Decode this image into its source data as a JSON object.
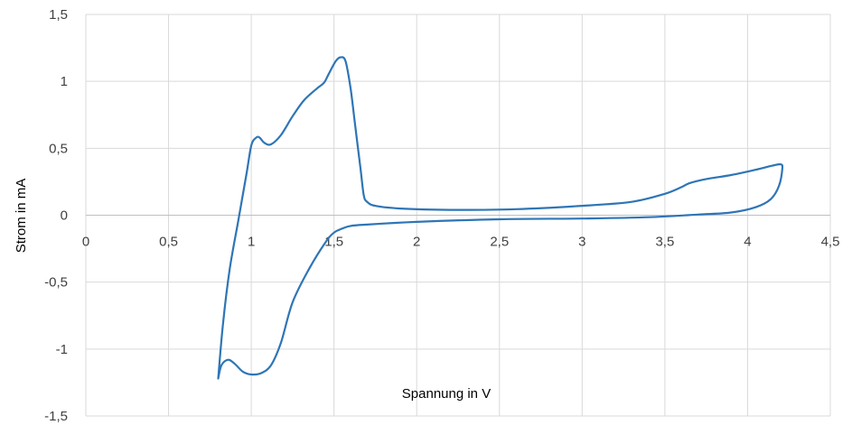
{
  "chart_data": {
    "type": "line",
    "title": "",
    "xlabel": "Spannung in V",
    "ylabel": "Strom in mA",
    "xlim": [
      0,
      4.5
    ],
    "ylim": [
      -1.5,
      1.5
    ],
    "x_ticks": [
      0,
      0.5,
      1,
      1.5,
      2,
      2.5,
      3,
      3.5,
      4,
      4.5
    ],
    "y_ticks": [
      -1.5,
      -1,
      -0.5,
      0,
      0.5,
      1,
      1.5
    ],
    "x_tick_labels": [
      "0",
      "0,5",
      "1",
      "1,5",
      "2",
      "2,5",
      "3",
      "3,5",
      "4",
      "4,5"
    ],
    "y_tick_labels": [
      "-1,5",
      "-1",
      "-0,5",
      "0",
      "0,5",
      "1",
      "1,5"
    ],
    "grid": true,
    "legend": "none",
    "series": [
      {
        "color": "#2e75b6",
        "x": [
          0.8,
          0.83,
          0.87,
          0.92,
          0.97,
          1.0,
          1.03,
          1.05,
          1.08,
          1.12,
          1.18,
          1.25,
          1.32,
          1.4,
          1.44,
          1.47,
          1.51,
          1.54,
          1.57,
          1.6,
          1.63,
          1.66,
          1.68,
          1.7,
          1.75,
          1.9,
          2.2,
          2.6,
          3.0,
          3.3,
          3.5,
          3.6,
          3.65,
          3.75,
          3.9,
          4.05,
          4.15,
          4.2,
          4.21,
          4.19,
          4.14,
          4.05,
          3.9,
          3.7,
          3.4,
          3.0,
          2.5,
          2.0,
          1.7,
          1.6,
          1.55,
          1.5,
          1.45,
          1.35,
          1.25,
          1.18,
          1.12,
          1.06,
          1.0,
          0.95,
          0.9,
          0.86,
          0.82,
          0.8
        ],
        "y": [
          -1.22,
          -0.8,
          -0.4,
          -0.05,
          0.3,
          0.52,
          0.58,
          0.58,
          0.54,
          0.53,
          0.6,
          0.74,
          0.86,
          0.95,
          0.99,
          1.06,
          1.15,
          1.18,
          1.15,
          0.95,
          0.65,
          0.35,
          0.15,
          0.1,
          0.07,
          0.05,
          0.04,
          0.045,
          0.07,
          0.1,
          0.16,
          0.21,
          0.24,
          0.27,
          0.3,
          0.34,
          0.37,
          0.38,
          0.35,
          0.22,
          0.12,
          0.06,
          0.02,
          0.005,
          -0.015,
          -0.025,
          -0.03,
          -0.05,
          -0.07,
          -0.08,
          -0.1,
          -0.13,
          -0.2,
          -0.4,
          -0.65,
          -0.95,
          -1.12,
          -1.18,
          -1.19,
          -1.17,
          -1.11,
          -1.08,
          -1.12,
          -1.22
        ]
      }
    ]
  }
}
